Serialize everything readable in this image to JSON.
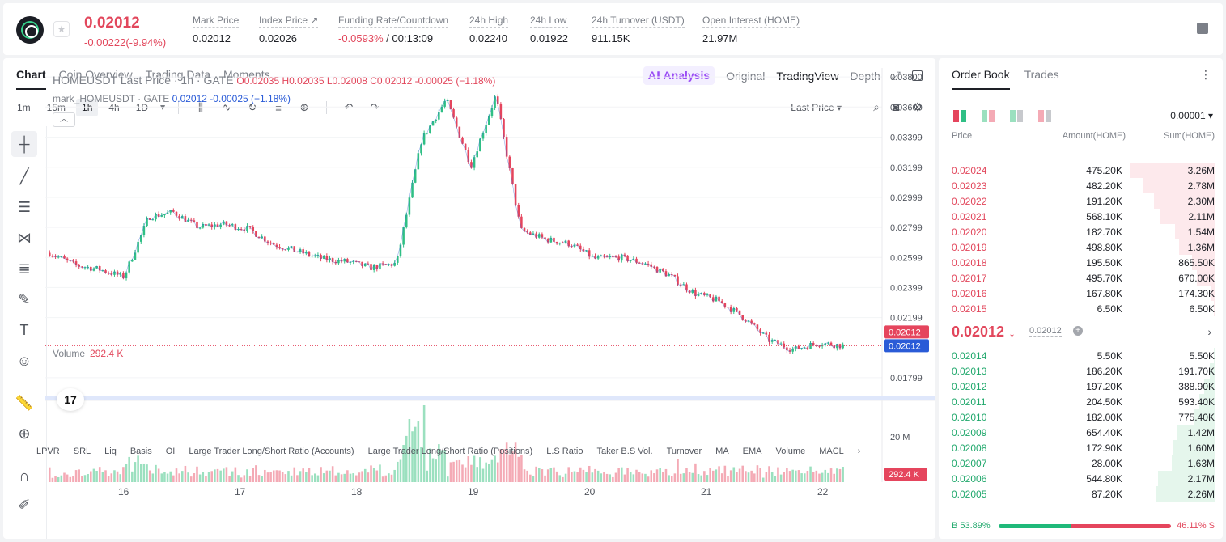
{
  "ticker": {
    "last_price": "0.02012",
    "change": "-0.00222(-9.94%)",
    "stats": [
      {
        "label": "Mark Price",
        "value": "0.02012"
      },
      {
        "label": "Index Price ↗",
        "value": "0.02026"
      },
      {
        "label": "Funding Rate/Countdown",
        "value_red": "-0.0593%",
        "value": " / 00:13:09"
      },
      {
        "label": "24h High",
        "value": "0.02240"
      },
      {
        "label": "24h Low",
        "value": "0.01922"
      },
      {
        "label": "24h Turnover (USDT)",
        "value": "911.15K"
      },
      {
        "label": "Open Interest (HOME)",
        "value": "21.97M"
      }
    ]
  },
  "chart_tabs": [
    "Chart",
    "Coin Overview",
    "Trading Data",
    "Moments"
  ],
  "view_tabs": {
    "ai": "A⁝ Analysis",
    "original": "Original",
    "tradingview": "TradingView",
    "depth": "Depth"
  },
  "intervals": [
    "1m",
    "15m",
    "1h",
    "4h",
    "1D"
  ],
  "active_interval": "1h",
  "price_type": "Last Price ▾",
  "legend": {
    "title": "HOMEUSDT Last Price · 1h · GATE",
    "ohlc": "O0.02035 H0.02035 L0.02008 C0.02012 -0.00025 (−1.18%)",
    "mark_prefix": "mark_HOMEUSDT · GATE",
    "mark_values": "0.02012 -0.00025 (−1.18%)",
    "volume_label": "Volume",
    "volume_value": "292.4 K"
  },
  "indicators": [
    "LPVR",
    "SRL",
    "Liq",
    "Basis",
    "OI",
    "Large Trader Long/Short Ratio (Accounts)",
    "Large Trader Long/Short Ratio (Positions)",
    "L.S Ratio",
    "Taker B.S Vol.",
    "Turnover",
    "MA",
    "EMA",
    "Volume",
    "MACL",
    "›"
  ],
  "chart_data": {
    "type": "candlestick",
    "price_axis": [
      "0.03800",
      "0.03600",
      "0.03399",
      "0.03199",
      "0.02999",
      "0.02799",
      "0.02599",
      "0.02399",
      "0.02199",
      "0.01799"
    ],
    "price_ylim": [
      0.0168,
      0.0386
    ],
    "volume_axis": [
      "20 M"
    ],
    "time_axis": [
      "16",
      "17",
      "18",
      "19",
      "20",
      "21",
      "22"
    ],
    "last_price_label": "0.02012",
    "mark_price_label": "0.02012",
    "volume_last_label": "292.4 K",
    "colors": {
      "up": "#2fbf85",
      "down": "#e5455d",
      "vol_up": "#9be0bf",
      "vol_down": "#f4aab5",
      "mark": "#2a5bd7"
    },
    "key_closes": [
      0.0263,
      0.0255,
      0.0252,
      0.0247,
      0.0287,
      0.029,
      0.028,
      0.0282,
      0.0279,
      0.0269,
      0.0264,
      0.0259,
      0.0257,
      0.0253,
      0.0256,
      0.0338,
      0.0365,
      0.0321,
      0.0368,
      0.0278,
      0.0272,
      0.0269,
      0.0259,
      0.026,
      0.0256,
      0.0248,
      0.0236,
      0.0231,
      0.022,
      0.0205,
      0.01985,
      0.0203,
      0.02012
    ]
  },
  "orderbook": {
    "tabs": [
      "Order Book",
      "Trades"
    ],
    "precision": "0.00001 ▾",
    "headers": {
      "price": "Price",
      "amount": "Amount(HOME)",
      "sum": "Sum(HOME)"
    },
    "asks": [
      {
        "p": "0.02024",
        "a": "475.20K",
        "s": "3.26M",
        "f": 1.0
      },
      {
        "p": "0.02023",
        "a": "482.20K",
        "s": "2.78M",
        "f": 0.85
      },
      {
        "p": "0.02022",
        "a": "191.20K",
        "s": "2.30M",
        "f": 0.71
      },
      {
        "p": "0.02021",
        "a": "568.10K",
        "s": "2.11M",
        "f": 0.65
      },
      {
        "p": "0.02020",
        "a": "182.70K",
        "s": "1.54M",
        "f": 0.47
      },
      {
        "p": "0.02019",
        "a": "498.80K",
        "s": "1.36M",
        "f": 0.42
      },
      {
        "p": "0.02018",
        "a": "195.50K",
        "s": "865.50K",
        "f": 0.27
      },
      {
        "p": "0.02017",
        "a": "495.70K",
        "s": "670.00K",
        "f": 0.21
      },
      {
        "p": "0.02016",
        "a": "167.80K",
        "s": "174.30K",
        "f": 0.05
      },
      {
        "p": "0.02015",
        "a": "6.50K",
        "s": "6.50K",
        "f": 0.01
      }
    ],
    "mid_price": "0.02012 ↓",
    "mid_mark": "0.02012",
    "bids": [
      {
        "p": "0.02014",
        "a": "5.50K",
        "s": "5.50K",
        "f": 0.01
      },
      {
        "p": "0.02013",
        "a": "186.20K",
        "s": "191.70K",
        "f": 0.06
      },
      {
        "p": "0.02012",
        "a": "197.20K",
        "s": "388.90K",
        "f": 0.12
      },
      {
        "p": "0.02011",
        "a": "204.50K",
        "s": "593.40K",
        "f": 0.18
      },
      {
        "p": "0.02010",
        "a": "182.00K",
        "s": "775.40K",
        "f": 0.24
      },
      {
        "p": "0.02009",
        "a": "654.40K",
        "s": "1.42M",
        "f": 0.44
      },
      {
        "p": "0.02008",
        "a": "172.90K",
        "s": "1.60M",
        "f": 0.49
      },
      {
        "p": "0.02007",
        "a": "28.00K",
        "s": "1.63M",
        "f": 0.5
      },
      {
        "p": "0.02006",
        "a": "544.80K",
        "s": "2.17M",
        "f": 0.67
      },
      {
        "p": "0.02005",
        "a": "87.20K",
        "s": "2.26M",
        "f": 0.69
      }
    ],
    "buy_ratio": "B 53.89%",
    "sell_ratio": "46.11% S",
    "buy_fraction": 0.5389
  }
}
